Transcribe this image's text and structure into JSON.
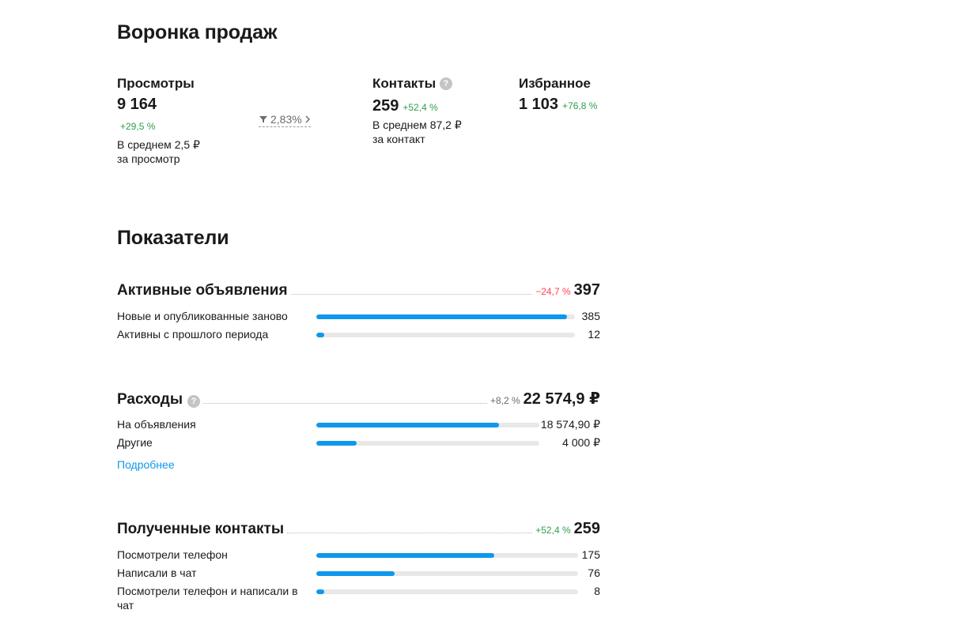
{
  "funnel": {
    "title": "Воронка продаж",
    "views": {
      "label": "Просмотры",
      "value": "9 164",
      "change": "+29,5 %",
      "sub_line1": "В среднем 2,5 ₽",
      "sub_line2": "за просмотр"
    },
    "conversion": {
      "value": "2,83%",
      "icon": "funnel-icon"
    },
    "contacts": {
      "label": "Контакты",
      "help": "?",
      "value": "259",
      "change": "+52,4 %",
      "sub_line1": "В среднем 87,2 ₽",
      "sub_line2": "за контакт"
    },
    "favorites": {
      "label": "Избранное",
      "value": "1 103",
      "change": "+76,8 %"
    }
  },
  "metrics": {
    "title": "Показатели",
    "active_ads": {
      "title": "Активные объявления",
      "change": "−24,7 %",
      "total": "397",
      "rows": [
        {
          "label": "Новые и опубликованные заново",
          "value": "385",
          "fraction": 0.97
        },
        {
          "label": "Активны с прошлого периода",
          "value": "12",
          "fraction": 0.03
        }
      ]
    },
    "expenses": {
      "title": "Расходы",
      "help": "?",
      "change": "+8,2 %",
      "total": "22 574,9 ₽",
      "rows": [
        {
          "label": "На объявления",
          "value": "18 574,90 ₽",
          "fraction": 0.82
        },
        {
          "label": "Другие",
          "value": "4 000 ₽",
          "fraction": 0.18
        }
      ],
      "more_link": "Подробнее"
    },
    "contacts": {
      "title": "Полученные контакты",
      "change": "+52,4 %",
      "total": "259",
      "rows": [
        {
          "label": "Посмотрели телефон",
          "value": "175",
          "fraction": 0.68
        },
        {
          "label": "Написали в чат",
          "value": "76",
          "fraction": 0.3
        },
        {
          "label": "Посмотрели телефон и написали в чат",
          "value": "8",
          "fraction": 0.03
        }
      ]
    }
  },
  "colors": {
    "accent": "#0d98ec",
    "positive": "#2e9e4e",
    "negative": "#ff4053",
    "track": "#e8e8e8"
  }
}
